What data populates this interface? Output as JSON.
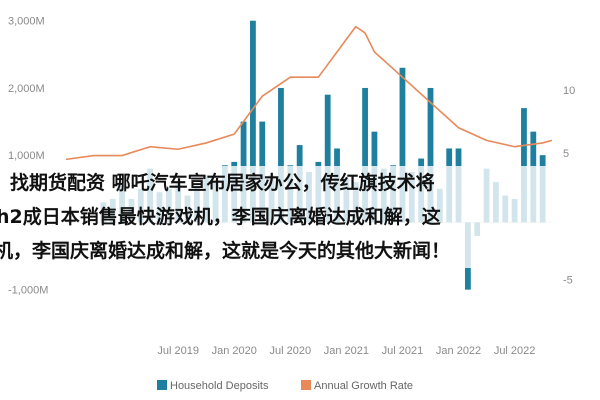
{
  "chart_data": {
    "type": "bar+line",
    "legend_position": "bottom",
    "grid": false,
    "left_axis": {
      "ticks": [
        "3,000M",
        "2,000M",
        "1,000M",
        "-1,000M"
      ],
      "ylim": [
        -1600,
        3100
      ]
    },
    "right_axis": {
      "ticks": [
        "10",
        "5",
        "-5"
      ],
      "ylim": [
        -9,
        16
      ]
    },
    "x_ticks": [
      "Jul 2019",
      "Jan 2020",
      "Jul 2020",
      "Jan 2021",
      "Jul 2021",
      "Jan 2022",
      "Jul 2022"
    ],
    "x_start": "2018-07",
    "x_end": "2022-11",
    "series": [
      {
        "name": "Household Deposits",
        "type": "bar",
        "color": "#1e7f9e",
        "x": [
          "2018-11",
          "2018-12",
          "2019-01",
          "2019-02",
          "2019-03",
          "2019-04",
          "2019-05",
          "2019-06",
          "2019-07",
          "2019-08",
          "2019-09",
          "2019-10",
          "2019-11",
          "2019-12",
          "2020-01",
          "2020-02",
          "2020-03",
          "2020-04",
          "2020-05",
          "2020-06",
          "2020-07",
          "2020-08",
          "2020-09",
          "2020-10",
          "2020-11",
          "2020-12",
          "2021-01",
          "2021-02",
          "2021-03",
          "2021-04",
          "2021-05",
          "2021-06",
          "2021-07",
          "2021-08",
          "2021-09",
          "2021-10",
          "2021-11",
          "2021-12",
          "2022-01",
          "2022-02",
          "2022-03",
          "2022-04",
          "2022-05",
          "2022-06",
          "2022-07",
          "2022-08",
          "2022-09",
          "2022-10"
        ],
        "values": [
          300,
          350,
          550,
          350,
          500,
          800,
          450,
          500,
          600,
          400,
          550,
          700,
          600,
          850,
          900,
          1500,
          3000,
          1500,
          700,
          2000,
          850,
          1150,
          750,
          900,
          1900,
          1100,
          650,
          600,
          2000,
          1350,
          800,
          850,
          2300,
          750,
          950,
          2000,
          500,
          1100,
          1100,
          -1000,
          -200,
          800,
          600,
          400,
          350,
          1700,
          1350,
          1000
        ]
      },
      {
        "name": "Annual Growth Rate",
        "type": "line",
        "color": "#e8895a",
        "x": [
          "2018-07",
          "2018-10",
          "2019-01",
          "2019-04",
          "2019-07",
          "2019-10",
          "2020-01",
          "2020-04",
          "2020-07",
          "2020-10",
          "2021-01",
          "2021-02",
          "2021-03",
          "2021-04",
          "2021-07",
          "2021-10",
          "2022-01",
          "2022-04",
          "2022-07",
          "2022-10",
          "2022-11"
        ],
        "values": [
          4.5,
          4.8,
          4.8,
          5.5,
          5.3,
          5.8,
          6.5,
          9.5,
          11.0,
          11.0,
          14.0,
          15.0,
          14.5,
          13.0,
          11.0,
          9.0,
          7.0,
          6.0,
          5.5,
          5.8,
          6.0
        ]
      }
    ]
  },
  "overlay_lines": [
    "找期货配资 哪吒汽车宣布居家办公，传红旗技术将",
    "h2成日本销售最快游戏机，李国庆离婚达成和解，这",
    "机，李国庆离婚达成和解，这就是今天的其他大新闻！"
  ]
}
